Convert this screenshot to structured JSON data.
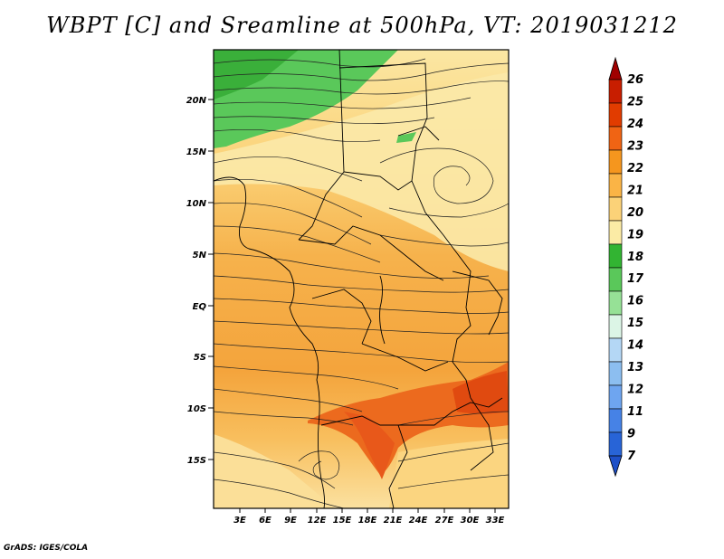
{
  "title": "WBPT [C] and Sreamline at 500hPa, VT: 2019031212",
  "credit": "GrADS: IGES/COLA",
  "axes": {
    "lat_ticks": [
      "20N",
      "15N",
      "10N",
      "5N",
      "EQ",
      "5S",
      "10S",
      "15S"
    ],
    "lon_ticks": [
      "3E",
      "6E",
      "9E",
      "12E",
      "15E",
      "18E",
      "21E",
      "24E",
      "27E",
      "30E",
      "33E"
    ]
  },
  "colorbar": {
    "labels": [
      "26",
      "25",
      "24",
      "23",
      "22",
      "21",
      "20",
      "19",
      "18",
      "17",
      "16",
      "15",
      "14",
      "13",
      "12",
      "11",
      "9",
      "7"
    ],
    "colors": [
      "#a00000",
      "#c81e00",
      "#e13c00",
      "#f06414",
      "#f5961e",
      "#fab446",
      "#fbd278",
      "#fbeba5",
      "#32b432",
      "#5ac85a",
      "#96e196",
      "#dcf5e6",
      "#b4d7f5",
      "#8cbef0",
      "#6ea5f0",
      "#4682e6",
      "#2864d7",
      "#1e50c8"
    ]
  }
}
